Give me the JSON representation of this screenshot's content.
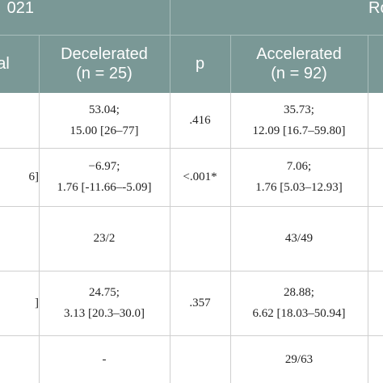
{
  "header": {
    "group_left": "021",
    "group_right": "Ro",
    "columns": [
      {
        "text": "al"
      },
      {
        "lines": [
          "Decelerated",
          "(n = 25)"
        ]
      },
      {
        "text": "p"
      },
      {
        "lines": [
          "Accelerated",
          "(n = 92)"
        ]
      }
    ]
  },
  "rows": [
    {
      "decelerated": [
        "53.04;",
        "15.00 [26–77]"
      ],
      "p": ".416",
      "accelerated": [
        "35.73;",
        "12.09 [16.7–59.80]"
      ]
    },
    {
      "first": "6]",
      "decelerated": [
        "−6.97;",
        "1.76 [-11.66–-5.09]"
      ],
      "p": "<.001*",
      "accelerated": [
        "7.06;",
        "1.76 [5.03–12.93]"
      ]
    },
    {
      "decelerated": [
        "23/2"
      ],
      "accelerated": [
        "43/49"
      ]
    },
    {
      "first": "]",
      "decelerated": [
        "24.75;",
        "3.13 [20.3–30.0]"
      ],
      "p": ".357",
      "accelerated": [
        "28.88;",
        "6.62 [18.03–50.94]"
      ]
    },
    {
      "decelerated": [
        "-"
      ],
      "accelerated": [
        "29/63"
      ]
    }
  ]
}
